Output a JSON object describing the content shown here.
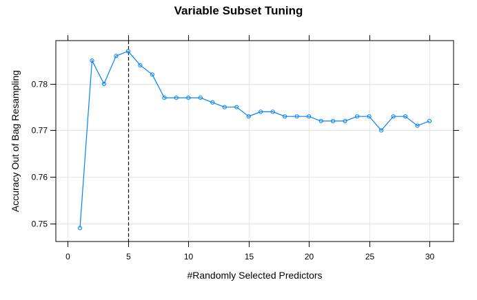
{
  "chart_data": {
    "type": "line",
    "title": "Variable Subset Tuning",
    "xlabel": "#Randomly Selected Predictors",
    "ylabel": "Accuracy Out of Bag Resampling",
    "xlim": [
      -1,
      32
    ],
    "ylim": [
      0.7461,
      0.7893
    ],
    "xticks": [
      0,
      5,
      10,
      15,
      20,
      25,
      30
    ],
    "yticks": [
      0.75,
      0.76,
      0.77,
      0.78
    ],
    "ytick_labels": [
      "0.75",
      "0.76",
      "0.77",
      "0.78"
    ],
    "grid": true,
    "reference_line": {
      "x": 5,
      "style": "dashed",
      "color": "#000000"
    },
    "series": [
      {
        "name": "Accuracy",
        "color": "#0080ff",
        "marker": "circle",
        "x": [
          1,
          2,
          3,
          4,
          5,
          6,
          7,
          8,
          9,
          10,
          11,
          12,
          13,
          14,
          15,
          16,
          17,
          18,
          19,
          20,
          21,
          22,
          23,
          24,
          25,
          26,
          27,
          28,
          29,
          30
        ],
        "values": [
          0.749,
          0.785,
          0.78,
          0.786,
          0.787,
          0.784,
          0.782,
          0.777,
          0.777,
          0.777,
          0.777,
          0.776,
          0.775,
          0.775,
          0.773,
          0.774,
          0.774,
          0.773,
          0.773,
          0.773,
          0.772,
          0.772,
          0.772,
          0.773,
          0.773,
          0.77,
          0.773,
          0.773,
          0.771,
          0.772
        ]
      }
    ]
  },
  "colors": {
    "series": "#0080ff",
    "grid": "#e6e6e6",
    "frame": "#000000"
  }
}
